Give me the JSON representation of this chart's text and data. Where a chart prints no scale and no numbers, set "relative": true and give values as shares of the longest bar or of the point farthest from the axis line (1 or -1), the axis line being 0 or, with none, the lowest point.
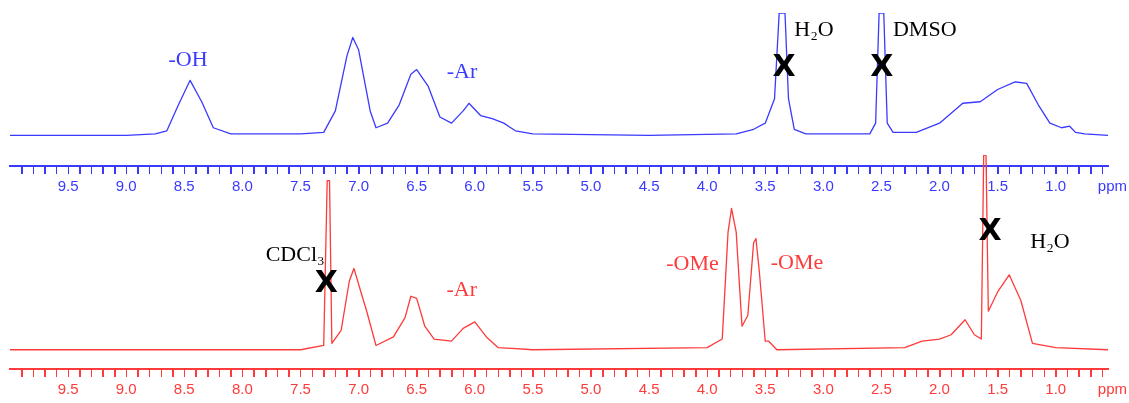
{
  "chart_data": [
    {
      "type": "line",
      "relative": true,
      "xlabel": "ppm",
      "color": "#3a3aff",
      "xlim": [
        10.0,
        0.55
      ],
      "xticks": [
        {
          "value": 9.9,
          "label": null
        },
        {
          "value": 9.8,
          "label": null
        },
        {
          "value": 9.7,
          "label": null
        },
        {
          "value": 9.6,
          "label": null
        },
        {
          "value": 9.5,
          "label": "9.5"
        },
        {
          "value": 9.4,
          "label": null
        },
        {
          "value": 9.3,
          "label": null
        },
        {
          "value": 9.2,
          "label": null
        },
        {
          "value": 9.1,
          "label": null
        },
        {
          "value": 9.0,
          "label": "9.0"
        },
        {
          "value": 8.9,
          "label": null
        },
        {
          "value": 8.8,
          "label": null
        },
        {
          "value": 8.7,
          "label": null
        },
        {
          "value": 8.6,
          "label": null
        },
        {
          "value": 8.5,
          "label": "8.5"
        },
        {
          "value": 8.4,
          "label": null
        },
        {
          "value": 8.3,
          "label": null
        },
        {
          "value": 8.2,
          "label": null
        },
        {
          "value": 8.1,
          "label": null
        },
        {
          "value": 8.0,
          "label": "8.0"
        },
        {
          "value": 7.9,
          "label": null
        },
        {
          "value": 7.8,
          "label": null
        },
        {
          "value": 7.7,
          "label": null
        },
        {
          "value": 7.6,
          "label": null
        },
        {
          "value": 7.5,
          "label": "7.5"
        },
        {
          "value": 7.4,
          "label": null
        },
        {
          "value": 7.3,
          "label": null
        },
        {
          "value": 7.2,
          "label": null
        },
        {
          "value": 7.1,
          "label": null
        },
        {
          "value": 7.0,
          "label": "7.0"
        },
        {
          "value": 6.9,
          "label": null
        },
        {
          "value": 6.8,
          "label": null
        },
        {
          "value": 6.7,
          "label": null
        },
        {
          "value": 6.6,
          "label": null
        },
        {
          "value": 6.5,
          "label": "6.5"
        },
        {
          "value": 6.4,
          "label": null
        },
        {
          "value": 6.3,
          "label": null
        },
        {
          "value": 6.2,
          "label": null
        },
        {
          "value": 6.1,
          "label": null
        },
        {
          "value": 6.0,
          "label": "6.0"
        },
        {
          "value": 5.9,
          "label": null
        },
        {
          "value": 5.8,
          "label": null
        },
        {
          "value": 5.7,
          "label": null
        },
        {
          "value": 5.6,
          "label": null
        },
        {
          "value": 5.5,
          "label": "5.5"
        },
        {
          "value": 5.4,
          "label": null
        },
        {
          "value": 5.3,
          "label": null
        },
        {
          "value": 5.2,
          "label": null
        },
        {
          "value": 5.1,
          "label": null
        },
        {
          "value": 5.0,
          "label": "5.0"
        },
        {
          "value": 4.9,
          "label": null
        },
        {
          "value": 4.8,
          "label": null
        },
        {
          "value": 4.7,
          "label": null
        },
        {
          "value": 4.6,
          "label": null
        },
        {
          "value": 4.5,
          "label": "4.5"
        },
        {
          "value": 4.4,
          "label": null
        },
        {
          "value": 4.3,
          "label": null
        },
        {
          "value": 4.2,
          "label": null
        },
        {
          "value": 4.1,
          "label": null
        },
        {
          "value": 4.0,
          "label": "4.0"
        },
        {
          "value": 3.9,
          "label": null
        },
        {
          "value": 3.8,
          "label": null
        },
        {
          "value": 3.7,
          "label": null
        },
        {
          "value": 3.6,
          "label": null
        },
        {
          "value": 3.5,
          "label": "3.5"
        },
        {
          "value": 3.4,
          "label": null
        },
        {
          "value": 3.3,
          "label": null
        },
        {
          "value": 3.2,
          "label": null
        },
        {
          "value": 3.1,
          "label": null
        },
        {
          "value": 3.0,
          "label": "3.0"
        },
        {
          "value": 2.9,
          "label": null
        },
        {
          "value": 2.8,
          "label": null
        },
        {
          "value": 2.7,
          "label": null
        },
        {
          "value": 2.6,
          "label": null
        },
        {
          "value": 2.5,
          "label": "2.5"
        },
        {
          "value": 2.4,
          "label": null
        },
        {
          "value": 2.3,
          "label": null
        },
        {
          "value": 2.2,
          "label": null
        },
        {
          "value": 2.1,
          "label": null
        },
        {
          "value": 2.0,
          "label": "2.0"
        },
        {
          "value": 1.9,
          "label": null
        },
        {
          "value": 1.8,
          "label": null
        },
        {
          "value": 1.7,
          "label": null
        },
        {
          "value": 1.6,
          "label": null
        },
        {
          "value": 1.5,
          "label": "1.5"
        },
        {
          "value": 1.4,
          "label": null
        },
        {
          "value": 1.3,
          "label": null
        },
        {
          "value": 1.2,
          "label": null
        },
        {
          "value": 1.1,
          "label": null
        },
        {
          "value": 1.0,
          "label": "1.0"
        },
        {
          "value": 0.9,
          "label": null
        },
        {
          "value": 0.8,
          "label": null
        },
        {
          "value": 0.7,
          "label": null
        },
        {
          "value": 0.6,
          "label": null
        }
      ],
      "x": [
        10.0,
        9.0,
        8.75,
        8.65,
        8.55,
        8.45,
        8.35,
        8.25,
        8.1,
        7.5,
        7.3,
        7.2,
        7.1,
        7.05,
        7.0,
        6.9,
        6.85,
        6.75,
        6.65,
        6.55,
        6.5,
        6.4,
        6.3,
        6.2,
        6.1,
        6.05,
        5.95,
        5.85,
        5.75,
        5.65,
        5.5,
        4.5,
        3.75,
        3.6,
        3.5,
        3.42,
        3.38,
        3.33,
        3.3,
        3.25,
        3.15,
        2.6,
        2.55,
        2.52,
        2.48,
        2.45,
        2.4,
        2.2,
        2.0,
        1.8,
        1.65,
        1.5,
        1.35,
        1.25,
        1.15,
        1.05,
        0.95,
        0.88,
        0.83,
        0.75,
        0.55
      ],
      "values": [
        0.2,
        0.2,
        0.21,
        0.23,
        0.4,
        0.56,
        0.42,
        0.25,
        0.21,
        0.21,
        0.22,
        0.36,
        0.72,
        0.84,
        0.76,
        0.36,
        0.25,
        0.28,
        0.4,
        0.6,
        0.63,
        0.52,
        0.32,
        0.28,
        0.36,
        0.41,
        0.33,
        0.31,
        0.28,
        0.23,
        0.21,
        0.2,
        0.21,
        0.24,
        0.28,
        0.44,
        1,
        1,
        0.44,
        0.24,
        0.21,
        0.21,
        0.28,
        1,
        1,
        0.28,
        0.22,
        0.22,
        0.28,
        0.41,
        0.42,
        0.5,
        0.55,
        0.54,
        0.4,
        0.28,
        0.25,
        0.26,
        0.22,
        0.21,
        0.2
      ],
      "annotations": [
        {
          "text": "-OH",
          "x": 8.45,
          "y": 0.56
        },
        {
          "text": "-Ar",
          "x": 6.05,
          "y": 0.41
        },
        {
          "text": "H₂O",
          "x": 3.33,
          "y": 1
        },
        {
          "text": "DMSO",
          "x": 2.48,
          "y": 1
        },
        {
          "text": "X",
          "x": 3.33,
          "y": 1
        },
        {
          "text": "X",
          "x": 2.48,
          "y": 1
        }
      ]
    },
    {
      "type": "line",
      "relative": true,
      "xlabel": "ppm",
      "color": "#ff3a3a",
      "xlim": [
        10.0,
        0.55
      ],
      "xticks": [
        {
          "value": 9.9,
          "label": null
        },
        {
          "value": 9.8,
          "label": null
        },
        {
          "value": 9.7,
          "label": null
        },
        {
          "value": 9.6,
          "label": null
        },
        {
          "value": 9.5,
          "label": "9.5"
        },
        {
          "value": 9.4,
          "label": null
        },
        {
          "value": 9.3,
          "label": null
        },
        {
          "value": 9.2,
          "label": null
        },
        {
          "value": 9.1,
          "label": null
        },
        {
          "value": 9.0,
          "label": "9.0"
        },
        {
          "value": 8.9,
          "label": null
        },
        {
          "value": 8.8,
          "label": null
        },
        {
          "value": 8.7,
          "label": null
        },
        {
          "value": 8.6,
          "label": null
        },
        {
          "value": 8.5,
          "label": "8.5"
        },
        {
          "value": 8.4,
          "label": null
        },
        {
          "value": 8.3,
          "label": null
        },
        {
          "value": 8.2,
          "label": null
        },
        {
          "value": 8.1,
          "label": null
        },
        {
          "value": 8.0,
          "label": "8.0"
        },
        {
          "value": 7.9,
          "label": null
        },
        {
          "value": 7.8,
          "label": null
        },
        {
          "value": 7.7,
          "label": null
        },
        {
          "value": 7.6,
          "label": null
        },
        {
          "value": 7.5,
          "label": "7.5"
        },
        {
          "value": 7.4,
          "label": null
        },
        {
          "value": 7.3,
          "label": null
        },
        {
          "value": 7.2,
          "label": null
        },
        {
          "value": 7.1,
          "label": null
        },
        {
          "value": 7.0,
          "label": "7.0"
        },
        {
          "value": 6.9,
          "label": null
        },
        {
          "value": 6.8,
          "label": null
        },
        {
          "value": 6.7,
          "label": null
        },
        {
          "value": 6.6,
          "label": null
        },
        {
          "value": 6.5,
          "label": "6.5"
        },
        {
          "value": 6.4,
          "label": null
        },
        {
          "value": 6.3,
          "label": null
        },
        {
          "value": 6.2,
          "label": null
        },
        {
          "value": 6.1,
          "label": null
        },
        {
          "value": 6.0,
          "label": "6.0"
        },
        {
          "value": 5.9,
          "label": null
        },
        {
          "value": 5.8,
          "label": null
        },
        {
          "value": 5.7,
          "label": null
        },
        {
          "value": 5.6,
          "label": null
        },
        {
          "value": 5.5,
          "label": "5.5"
        },
        {
          "value": 5.4,
          "label": null
        },
        {
          "value": 5.3,
          "label": null
        },
        {
          "value": 5.2,
          "label": null
        },
        {
          "value": 5.1,
          "label": null
        },
        {
          "value": 5.0,
          "label": "5.0"
        },
        {
          "value": 4.9,
          "label": null
        },
        {
          "value": 4.8,
          "label": null
        },
        {
          "value": 4.7,
          "label": null
        },
        {
          "value": 4.6,
          "label": null
        },
        {
          "value": 4.5,
          "label": "4.5"
        },
        {
          "value": 4.4,
          "label": null
        },
        {
          "value": 4.3,
          "label": null
        },
        {
          "value": 4.2,
          "label": null
        },
        {
          "value": 4.1,
          "label": null
        },
        {
          "value": 4.0,
          "label": "4.0"
        },
        {
          "value": 3.9,
          "label": null
        },
        {
          "value": 3.8,
          "label": null
        },
        {
          "value": 3.7,
          "label": null
        },
        {
          "value": 3.6,
          "label": null
        },
        {
          "value": 3.5,
          "label": "3.5"
        },
        {
          "value": 3.4,
          "label": null
        },
        {
          "value": 3.3,
          "label": null
        },
        {
          "value": 3.2,
          "label": null
        },
        {
          "value": 3.1,
          "label": null
        },
        {
          "value": 3.0,
          "label": "3.0"
        },
        {
          "value": 2.9,
          "label": null
        },
        {
          "value": 2.8,
          "label": null
        },
        {
          "value": 2.7,
          "label": null
        },
        {
          "value": 2.6,
          "label": null
        },
        {
          "value": 2.5,
          "label": "2.5"
        },
        {
          "value": 2.4,
          "label": null
        },
        {
          "value": 2.3,
          "label": null
        },
        {
          "value": 2.2,
          "label": null
        },
        {
          "value": 2.1,
          "label": null
        },
        {
          "value": 2.0,
          "label": "2.0"
        },
        {
          "value": 1.9,
          "label": null
        },
        {
          "value": 1.8,
          "label": null
        },
        {
          "value": 1.7,
          "label": null
        },
        {
          "value": 1.6,
          "label": null
        },
        {
          "value": 1.5,
          "label": "1.5"
        },
        {
          "value": 1.4,
          "label": null
        },
        {
          "value": 1.3,
          "label": null
        },
        {
          "value": 1.2,
          "label": null
        },
        {
          "value": 1.1,
          "label": null
        },
        {
          "value": 1.0,
          "label": "1.0"
        },
        {
          "value": 0.9,
          "label": null
        },
        {
          "value": 0.8,
          "label": null
        },
        {
          "value": 0.7,
          "label": null
        },
        {
          "value": 0.6,
          "label": null
        }
      ],
      "x": [
        10.0,
        7.5,
        7.3,
        7.27,
        7.25,
        7.23,
        7.15,
        7.08,
        7.04,
        6.98,
        6.93,
        6.85,
        6.7,
        6.6,
        6.55,
        6.5,
        6.43,
        6.35,
        6.2,
        6.1,
        6.0,
        5.9,
        5.8,
        5.5,
        4.0,
        3.87,
        3.82,
        3.79,
        3.75,
        3.7,
        3.65,
        3.6,
        3.58,
        3.55,
        3.5,
        3.47,
        3.4,
        2.3,
        2.15,
        2.0,
        1.9,
        1.78,
        1.7,
        1.64,
        1.62,
        1.6,
        1.58,
        1.5,
        1.4,
        1.3,
        1.2,
        1.0,
        0.55
      ],
      "values": [
        0.09,
        0.09,
        0.11,
        0.88,
        0.88,
        0.12,
        0.18,
        0.41,
        0.47,
        0.36,
        0.27,
        0.11,
        0.15,
        0.24,
        0.34,
        0.33,
        0.2,
        0.14,
        0.13,
        0.19,
        0.22,
        0.15,
        0.1,
        0.09,
        0.1,
        0.14,
        0.64,
        0.75,
        0.64,
        0.2,
        0.25,
        0.59,
        0.61,
        0.45,
        0.13,
        0.13,
        0.09,
        0.1,
        0.13,
        0.14,
        0.16,
        0.23,
        0.16,
        0.14,
        1,
        1,
        0.27,
        0.36,
        0.44,
        0.32,
        0.12,
        0.1,
        0.09
      ],
      "annotations": [
        {
          "text": "-Ar",
          "x": 6.0,
          "y": 0.22
        },
        {
          "text": "-OMe",
          "x": 3.79,
          "y": 0.75
        },
        {
          "text": "-OMe",
          "x": 3.58,
          "y": 0.61
        },
        {
          "text": "CDCl₃",
          "x": 7.27,
          "y": 0.88
        },
        {
          "text": "X",
          "x": 7.27,
          "y": 0.88
        },
        "H₂O",
        {
          "text": "X",
          "x": 1.6,
          "y": 1
        }
      ]
    }
  ]
}
